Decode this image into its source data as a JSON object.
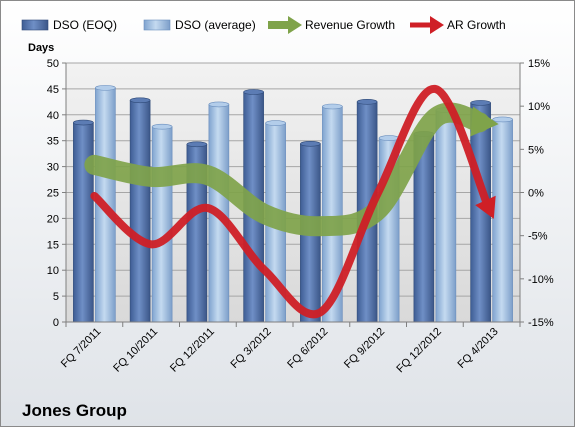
{
  "chart_data": {
    "type": "bar",
    "categories": [
      "FQ 7/2011",
      "FQ 10/2011",
      "FQ 12/2011",
      "FQ 3/2012",
      "FQ 6/2012",
      "FQ 9/2012",
      "FQ 12/2012",
      "FQ 4/2013"
    ],
    "series": [
      {
        "name": "DSO (EOQ)",
        "kind": "bar",
        "axis": "left",
        "color": "#4f6fa8",
        "values": [
          38.5,
          42.8,
          34.3,
          44.4,
          34.4,
          42.5,
          36.3,
          42.3
        ]
      },
      {
        "name": "DSO (average)",
        "kind": "bar",
        "axis": "left",
        "color": "#9cbcdf",
        "values": [
          45.2,
          37.7,
          42.0,
          38.4,
          41.6,
          35.5,
          40.9,
          39.1
        ]
      },
      {
        "name": "Revenue Growth",
        "kind": "arrow-line",
        "axis": "right",
        "color": "#7fa34a",
        "values": [
          3.2,
          1.8,
          2.0,
          -2.5,
          -3.9,
          -2.0,
          8.6,
          8.0
        ]
      },
      {
        "name": "AR Growth",
        "kind": "arrow-line",
        "axis": "right",
        "color": "#cf1f26",
        "values": [
          -0.4,
          -6.0,
          -1.8,
          -9.0,
          -13.8,
          0.0,
          12.0,
          -2.5
        ]
      }
    ],
    "ylabel": "Days",
    "ylim": [
      0,
      50
    ],
    "yticks": [
      "0",
      "5",
      "10",
      "15",
      "20",
      "25",
      "30",
      "35",
      "40",
      "45",
      "50"
    ],
    "y2lim": [
      -15,
      15
    ],
    "y2ticks": [
      "-15%",
      "-10%",
      "-5%",
      "0%",
      "5%",
      "10%",
      "15%"
    ],
    "legend_position": "top",
    "grid": true,
    "company": "Jones Group"
  }
}
